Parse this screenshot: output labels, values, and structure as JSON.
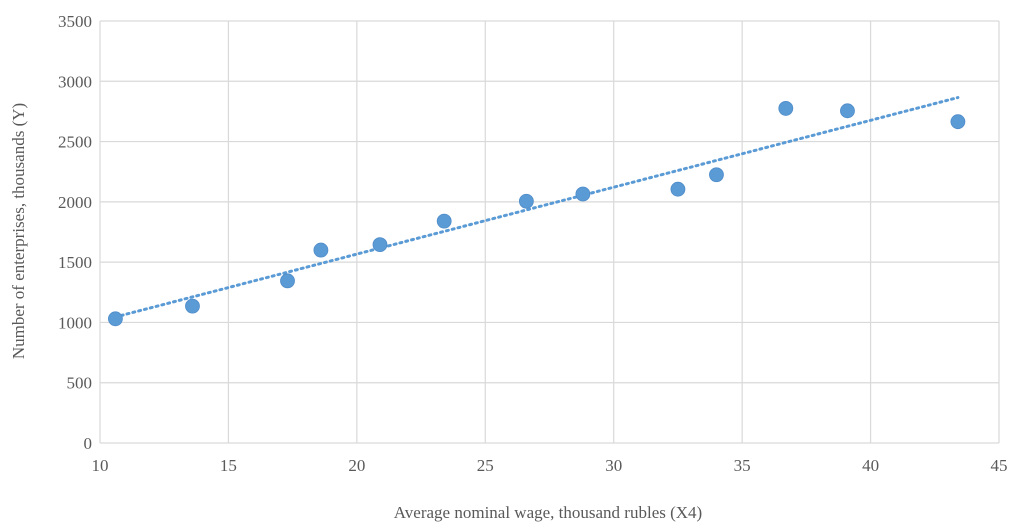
{
  "chart_data": {
    "type": "scatter",
    "xlabel": "Average nominal wage, thousand rubles (X4)",
    "ylabel": "Number of enterprises, thousands (Y)",
    "xlim": [
      10,
      45
    ],
    "ylim": [
      0,
      3500
    ],
    "xticks": [
      10,
      15,
      20,
      25,
      30,
      35,
      40,
      45
    ],
    "yticks": [
      0,
      500,
      1000,
      1500,
      2000,
      2500,
      3000,
      3500
    ],
    "grid": true,
    "legend": "none",
    "marker_color": "#5b9bd5",
    "series": [
      {
        "points": [
          {
            "x": 10.6,
            "y": 1030
          },
          {
            "x": 13.6,
            "y": 1135
          },
          {
            "x": 17.3,
            "y": 1345
          },
          {
            "x": 18.6,
            "y": 1600
          },
          {
            "x": 20.9,
            "y": 1645
          },
          {
            "x": 23.4,
            "y": 1840
          },
          {
            "x": 26.6,
            "y": 2005
          },
          {
            "x": 28.8,
            "y": 2065
          },
          {
            "x": 32.5,
            "y": 2105
          },
          {
            "x": 34.0,
            "y": 2225
          },
          {
            "x": 36.7,
            "y": 2775
          },
          {
            "x": 39.1,
            "y": 2755
          },
          {
            "x": 43.4,
            "y": 2665
          }
        ]
      }
    ],
    "trendline": {
      "type": "linear",
      "style": "dotted",
      "color": "#5b9bd5",
      "from": {
        "x": 10.6,
        "y": 1045
      },
      "to": {
        "x": 43.4,
        "y": 2865
      }
    }
  }
}
